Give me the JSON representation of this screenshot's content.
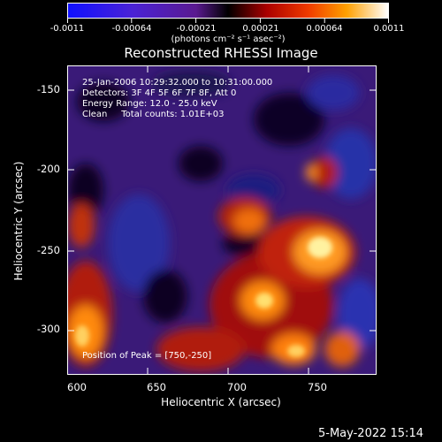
{
  "colorbar": {
    "labels": [
      "-0.0011",
      "-0.00064",
      "-0.00021",
      "0.00021",
      "0.00064",
      "0.0011"
    ],
    "unit": "(photons cm⁻² s⁻¹ asec⁻²)"
  },
  "title": "Reconstructed RHESSI Image",
  "overlay": {
    "time": "25-Jan-2006 10:29:32.000 to 10:31:00.000",
    "detectors": "Detectors: 3F 4F 5F 6F 7F 8F, Att 0",
    "energy": "Energy Range: 12.0 - 25.0 keV",
    "clean": "Clean     Total counts: 1.01E+03",
    "peak": "Position of Peak = [750,-250]"
  },
  "axes": {
    "x_label": "Heliocentric X (arcsec)",
    "y_label": "Heliocentric Y (arcsec)",
    "x_ticks": [
      "600",
      "650",
      "700",
      "750"
    ],
    "y_ticks": [
      "-150",
      "-200",
      "-250",
      "-300"
    ]
  },
  "footer_date": "5-May-2022 15:14"
}
